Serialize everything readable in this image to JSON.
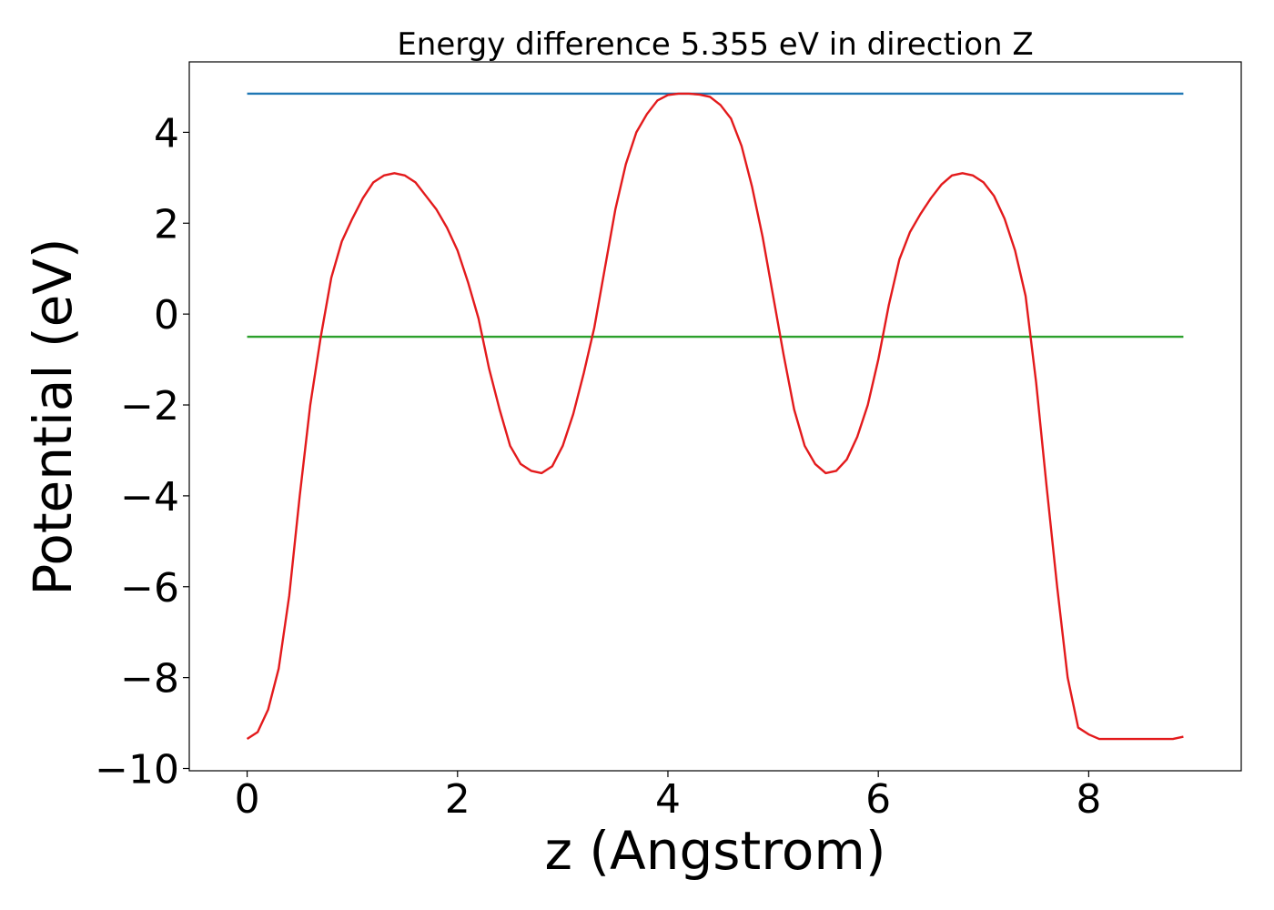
{
  "chart_data": {
    "type": "line",
    "title": "Energy difference 5.355 eV in direction Z",
    "xlabel": "z (Angstrom)",
    "ylabel": "Potential (eV)",
    "xlim": [
      -0.55,
      9.45
    ],
    "ylim": [
      -10.05,
      5.55
    ],
    "xticks": [
      0,
      2,
      4,
      6,
      8
    ],
    "yticks": [
      -10,
      -8,
      -6,
      -4,
      -2,
      0,
      2,
      4
    ],
    "xtick_labels": [
      "0",
      "2",
      "4",
      "6",
      "8"
    ],
    "ytick_labels": [
      "−10",
      "−8",
      "−6",
      "−4",
      "−2",
      "0",
      "2",
      "4"
    ],
    "grid": false,
    "colors": {
      "potential": "#e31a1c",
      "upper_level": "#1f77b4",
      "lower_level": "#2ca02c"
    },
    "series": [
      {
        "color": "#e31a1c",
        "x": [
          0.0,
          0.1,
          0.2,
          0.3,
          0.4,
          0.5,
          0.6,
          0.7,
          0.8,
          0.9,
          1.0,
          1.1,
          1.2,
          1.3,
          1.4,
          1.5,
          1.6,
          1.7,
          1.8,
          1.9,
          2.0,
          2.1,
          2.2,
          2.3,
          2.4,
          2.5,
          2.6,
          2.7,
          2.8,
          2.9,
          3.0,
          3.1,
          3.2,
          3.3,
          3.4,
          3.5,
          3.6,
          3.7,
          3.8,
          3.9,
          4.0,
          4.1,
          4.2,
          4.3,
          4.4,
          4.5,
          4.6,
          4.7,
          4.8,
          4.9,
          5.0,
          5.1,
          5.2,
          5.3,
          5.4,
          5.5,
          5.6,
          5.7,
          5.8,
          5.9,
          6.0,
          6.1,
          6.2,
          6.3,
          6.4,
          6.5,
          6.6,
          6.7,
          6.8,
          6.9,
          7.0,
          7.1,
          7.2,
          7.3,
          7.4,
          7.5,
          7.6,
          7.7,
          7.8,
          7.9,
          8.0,
          8.1,
          8.2,
          8.3,
          8.4,
          8.5,
          8.6,
          8.7,
          8.8,
          8.9
        ],
        "y": [
          -9.35,
          -9.2,
          -8.7,
          -7.8,
          -6.2,
          -4.0,
          -2.0,
          -0.5,
          0.8,
          1.6,
          2.1,
          2.55,
          2.9,
          3.05,
          3.1,
          3.05,
          2.9,
          2.6,
          2.3,
          1.9,
          1.4,
          0.7,
          -0.1,
          -1.2,
          -2.1,
          -2.9,
          -3.3,
          -3.45,
          -3.5,
          -3.35,
          -2.9,
          -2.2,
          -1.3,
          -0.3,
          1.0,
          2.3,
          3.3,
          4.0,
          4.4,
          4.7,
          4.82,
          4.85,
          4.85,
          4.83,
          4.78,
          4.6,
          4.3,
          3.7,
          2.8,
          1.7,
          0.4,
          -0.9,
          -2.1,
          -2.9,
          -3.3,
          -3.5,
          -3.45,
          -3.2,
          -2.7,
          -2.0,
          -1.0,
          0.2,
          1.2,
          1.8,
          2.2,
          2.55,
          2.85,
          3.05,
          3.1,
          3.05,
          2.9,
          2.6,
          2.1,
          1.4,
          0.4,
          -1.5,
          -3.8,
          -6.0,
          -8.0,
          -9.1,
          -9.25,
          -9.35,
          -9.35,
          -9.35,
          -9.35,
          -9.35,
          -9.35,
          -9.35,
          -9.35,
          -9.3
        ]
      },
      {
        "color": "#1f77b4",
        "x": [
          0.0,
          8.9
        ],
        "y": [
          4.85,
          4.85
        ]
      },
      {
        "color": "#2ca02c",
        "x": [
          0.0,
          8.9
        ],
        "y": [
          -0.5,
          -0.5
        ]
      }
    ]
  }
}
